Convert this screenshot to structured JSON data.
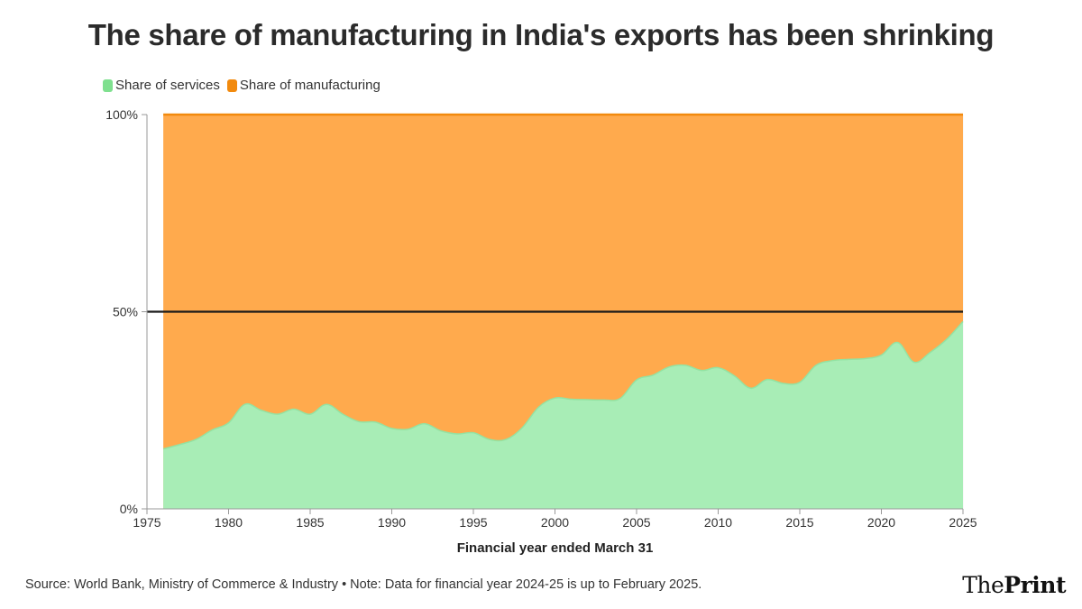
{
  "title": "The share of manufacturing in India's exports has been shrinking",
  "legend": {
    "services_label": "Share of services",
    "manufacturing_label": "Share of manufacturing"
  },
  "colors": {
    "services": "#a8edb6",
    "services_legend": "#7fe08f",
    "manufacturing": "#ffaa4d",
    "manufacturing_line": "#f28a0e",
    "reference_line": "#1a1a1a"
  },
  "footer": {
    "source": "Source: World Bank, Ministry of Commerce & Industry • Note: Data for financial year 2024-25 is up to February 2025."
  },
  "brand": {
    "part1": "The",
    "part2": "Print"
  },
  "chart_data": {
    "type": "area",
    "stacked": true,
    "title": "The share of manufacturing in India's exports has been shrinking",
    "xlabel": "Financial year ended March 31",
    "ylabel": "",
    "xlim": [
      1975,
      2025
    ],
    "ylim": [
      0,
      100
    ],
    "x_ticks": [
      1975,
      1980,
      1985,
      1990,
      1995,
      2000,
      2005,
      2010,
      2015,
      2020,
      2025
    ],
    "y_ticks": [
      {
        "value": 0,
        "label": "0%"
      },
      {
        "value": 50,
        "label": "50%"
      },
      {
        "value": 100,
        "label": "100%"
      }
    ],
    "reference_line": {
      "y": 50
    },
    "x": [
      1976,
      1977,
      1978,
      1979,
      1980,
      1981,
      1982,
      1983,
      1984,
      1985,
      1986,
      1987,
      1988,
      1989,
      1990,
      1991,
      1992,
      1993,
      1994,
      1995,
      1996,
      1997,
      1998,
      1999,
      2000,
      2001,
      2002,
      2003,
      2004,
      2005,
      2006,
      2007,
      2008,
      2009,
      2010,
      2011,
      2012,
      2013,
      2014,
      2015,
      2016,
      2017,
      2018,
      2019,
      2020,
      2021,
      2022,
      2023,
      2024,
      2025
    ],
    "series": [
      {
        "name": "Share of services",
        "values": [
          15.2,
          16.3,
          17.6,
          20.0,
          21.8,
          26.5,
          25.0,
          24.0,
          25.3,
          24.0,
          26.5,
          24.0,
          22.1,
          22.0,
          20.4,
          20.2,
          21.6,
          19.8,
          19.0,
          19.3,
          17.6,
          17.6,
          20.6,
          25.8,
          28.1,
          27.8,
          27.7,
          27.6,
          28.0,
          32.7,
          33.9,
          36.0,
          36.4,
          35.1,
          35.8,
          33.7,
          30.6,
          32.8,
          31.8,
          32.1,
          36.4,
          37.6,
          37.9,
          38.1,
          39.0,
          42.2,
          37.2,
          39.7,
          43.0,
          47.5
        ]
      },
      {
        "name": "Share of manufacturing",
        "values": [
          84.8,
          83.7,
          82.4,
          80.0,
          78.2,
          73.5,
          75.0,
          76.0,
          74.7,
          76.0,
          73.5,
          76.0,
          77.9,
          78.0,
          79.6,
          79.8,
          78.4,
          80.2,
          81.0,
          80.7,
          82.4,
          82.4,
          79.4,
          74.2,
          71.9,
          72.2,
          72.3,
          72.4,
          72.0,
          67.3,
          66.1,
          64.0,
          63.6,
          64.9,
          64.2,
          66.3,
          69.4,
          67.2,
          68.2,
          67.9,
          63.6,
          62.4,
          62.1,
          61.9,
          61.0,
          57.8,
          62.8,
          60.3,
          57.0,
          52.5
        ]
      }
    ]
  }
}
